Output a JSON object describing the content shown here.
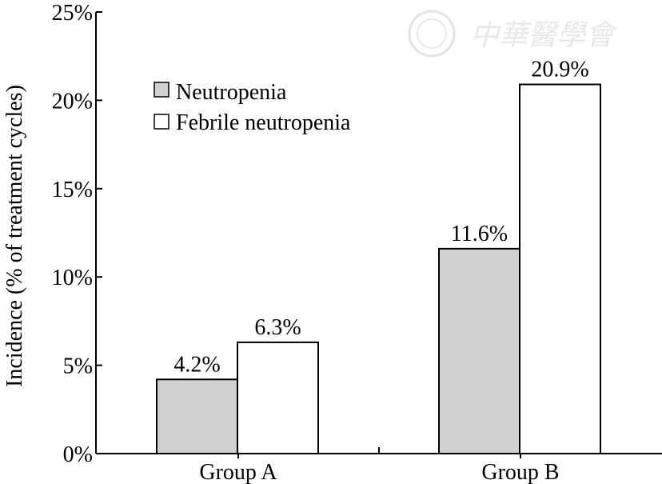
{
  "chart_data": {
    "type": "bar",
    "categories": [
      "Group A",
      "Group B"
    ],
    "series": [
      {
        "name": "Neutropenia",
        "values": [
          4.2,
          11.6
        ],
        "labels": [
          "4.2%",
          "11.6%"
        ],
        "color": "#d0d0d0"
      },
      {
        "name": "Febrile neutropenia",
        "values": [
          6.3,
          20.9
        ],
        "labels": [
          "6.3%",
          "20.9%"
        ],
        "color": "#ffffff"
      }
    ],
    "ylabel": "Incidence (% of treatment cycles)",
    "xlabel": "",
    "title": "",
    "ylim": [
      0,
      25
    ],
    "yticks": [
      0,
      5,
      10,
      15,
      20,
      25
    ],
    "ytick_labels": [
      "0%",
      "5%",
      "10%",
      "15%",
      "20%",
      "25%"
    ],
    "grid": false,
    "legend_position": "top-left"
  },
  "watermark": {
    "text": "中華醫學會"
  }
}
